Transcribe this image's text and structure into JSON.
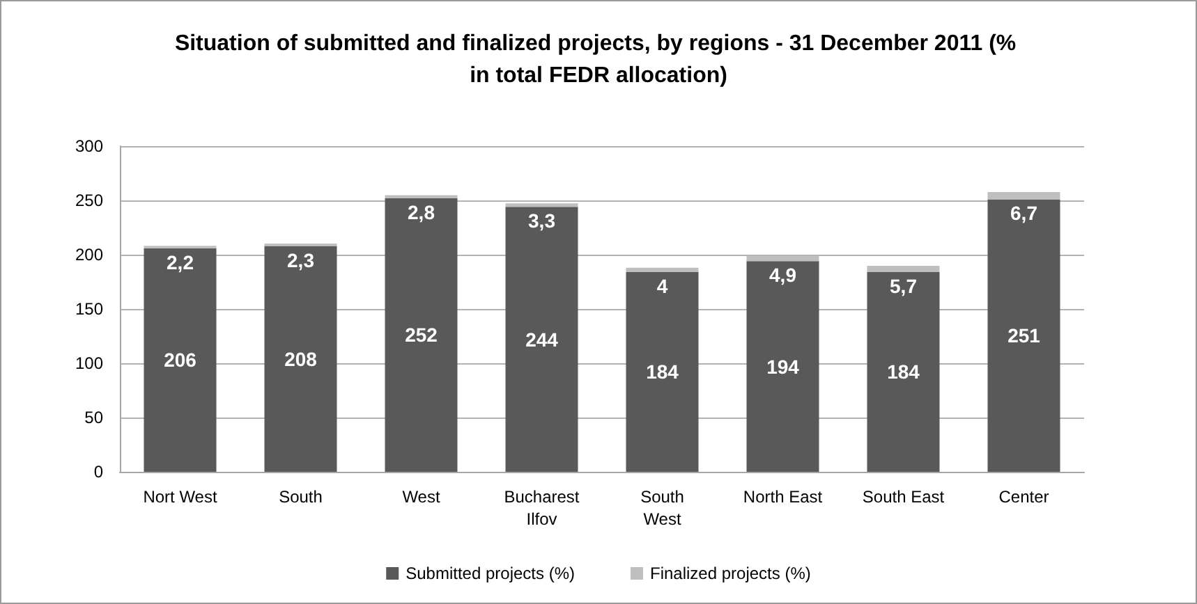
{
  "chart_data": {
    "type": "bar",
    "title": "Situation of submitted and finalized projects, by regions - 31 December 2011 (% in total FEDR allocation)",
    "categories": [
      "Nort West",
      "South",
      "West",
      "Bucharest\nIlfov",
      "South\nWest",
      "North East",
      "South East",
      "Center"
    ],
    "series": [
      {
        "name": "Submitted projects (%)",
        "color": "#595959",
        "values": [
          206,
          208,
          252,
          244,
          184,
          194,
          184,
          251
        ],
        "value_labels": [
          "206",
          "208",
          "252",
          "244",
          "184",
          "194",
          "184",
          "251"
        ]
      },
      {
        "name": "Finalized projects (%)",
        "color": "#bfbfbf",
        "values": [
          2.2,
          2.3,
          2.8,
          3.3,
          4,
          4.9,
          5.7,
          6.7
        ],
        "value_labels": [
          "2,2",
          "2,3",
          "2,8",
          "3,3",
          "4",
          "4,9",
          "5,7",
          "6,7"
        ]
      }
    ],
    "stacked": true,
    "ylim": [
      0,
      300
    ],
    "yticks": [
      0,
      50,
      100,
      150,
      200,
      250,
      300
    ],
    "grid": "y",
    "legend": "bottom"
  }
}
